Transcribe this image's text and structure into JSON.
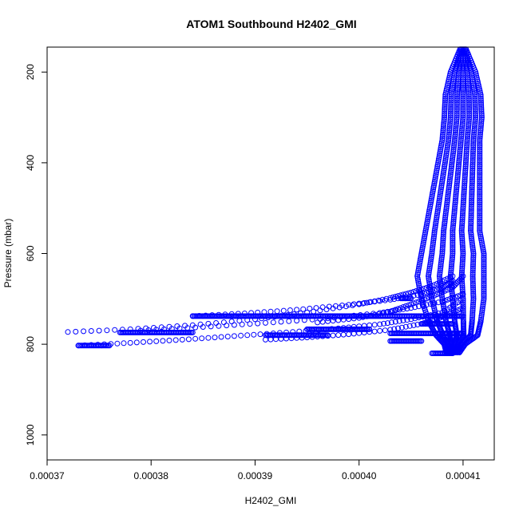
{
  "chart_data": {
    "type": "scatter",
    "title": "ATOM1 Southbound H2402_GMI",
    "xlabel": "H2402_GMI",
    "ylabel": "Pressure (mbar)",
    "xlim": [
      0.00037,
      0.000413
    ],
    "ylim": [
      1055,
      145
    ],
    "y_reversed": true,
    "x_ticks": [
      "0.00037",
      "0.00038",
      "0.00039",
      "0.00040",
      "0.00041"
    ],
    "x_tick_values": [
      0.00037,
      0.00038,
      0.00039,
      0.0004,
      0.00041
    ],
    "y_ticks": [
      "200",
      "400",
      "600",
      "800",
      "1000"
    ],
    "y_tick_values": [
      200,
      400,
      600,
      800,
      1000
    ],
    "grid": false,
    "marker": "open-circle",
    "color": "#0000ff",
    "series": [
      {
        "profiles": [
          {
            "x": [
              0.000372,
              0.000378,
              0.000384,
              0.00039,
              0.000395,
              0.0004,
              0.000403,
              0.000405,
              0.000407,
              0.000409
            ],
            "y": [
              773,
              767,
              758,
              745,
              730,
              712,
              698,
              686,
              672,
              650
            ]
          },
          {
            "x": [
              0.000373,
              0.000378,
              0.000383,
              0.000388,
              0.000393,
              0.000398,
              0.000402,
              0.000405,
              0.000408,
              0.00041
            ],
            "y": [
              803,
              797,
              790,
              782,
              774,
              765,
              756,
              745,
              730,
              700
            ]
          },
          {
            "x": [
              0.000384,
              0.000389,
              0.000394,
              0.000399,
              0.000403,
              0.000406,
              0.000408,
              0.000409
            ],
            "y": [
              738,
              732,
              724,
              713,
              702,
              690,
              676,
              660
            ]
          },
          {
            "x": [
              0.000379,
              0.000385,
              0.000391,
              0.000397,
              0.000402,
              0.000405,
              0.000408,
              0.00041
            ],
            "y": [
              770,
              762,
              753,
              743,
              731,
              720,
              706,
              690
            ]
          },
          {
            "x": [
              0.000391,
              0.000395,
              0.000399,
              0.000403,
              0.000406,
              0.000408,
              0.00041
            ],
            "y": [
              790,
              785,
              778,
              768,
              755,
              740,
              720
            ]
          },
          {
            "x": [
              0.000396,
              0.0004,
              0.000403,
              0.000405,
              0.000407,
              0.000409,
              0.00041
            ],
            "y": [
              752,
              742,
              728,
              712,
              695,
              675,
              650
            ]
          }
        ],
        "segments": [
          {
            "x": [
              0.000373,
              0.000376
            ],
            "y": [
              803,
              803
            ]
          },
          {
            "x": [
              0.000377,
              0.000384
            ],
            "y": [
              774,
              774
            ]
          },
          {
            "x": [
              0.000384,
              0.00041
            ],
            "y": [
              738,
              738
            ]
          },
          {
            "x": [
              0.000391,
              0.000397
            ],
            "y": [
              780,
              780
            ]
          },
          {
            "x": [
              0.000395,
              0.000401
            ],
            "y": [
              767,
              767
            ]
          },
          {
            "x": [
              0.000403,
              0.00041
            ],
            "y": [
              776,
              776
            ]
          },
          {
            "x": [
              0.000406,
              0.000409
            ],
            "y": [
              755,
              755
            ]
          },
          {
            "x": [
              0.000404,
              0.000405
            ],
            "y": [
              699,
              699
            ]
          },
          {
            "x": [
              0.000403,
              0.000406
            ],
            "y": [
              793,
              793
            ]
          },
          {
            "x": [
              0.000407,
              0.000409
            ],
            "y": [
              820,
              820
            ]
          }
        ],
        "column": {
          "p": [
            150,
            200,
            250,
            300,
            350,
            400,
            450,
            500,
            550,
            600,
            650,
            700,
            750,
            780,
            800,
            820
          ],
          "x_center": [
            0.00041,
            0.00041,
            0.00041,
            0.00041,
            0.0004098,
            0.0004096,
            0.0004094,
            0.0004092,
            0.000409,
            0.000409,
            0.0004088,
            0.000409,
            0.0004092,
            0.0004094,
            0.0004092,
            0.000409
          ],
          "x_halfwidth": [
            3e-07,
            1.2e-06,
            1.7e-06,
            1.8e-06,
            1.8e-06,
            2e-06,
            2.2e-06,
            2.4e-06,
            2.6e-06,
            3e-06,
            3.2e-06,
            3e-06,
            2.5e-06,
            2e-06,
            1e-06,
            6e-07
          ]
        }
      }
    ]
  }
}
